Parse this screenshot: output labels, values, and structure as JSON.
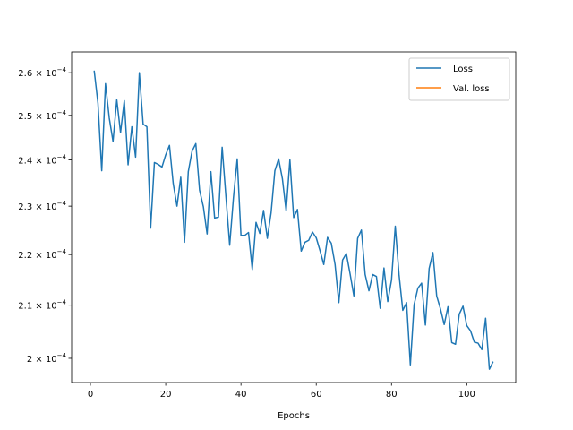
{
  "chart_data": {
    "type": "line",
    "title": "",
    "xlabel": "Epochs",
    "ylabel": "",
    "y_scale": "log",
    "xlim": [
      -5,
      113
    ],
    "ylim": [
      0.0001956,
      0.000265
    ],
    "x_ticks": [
      0,
      20,
      40,
      60,
      80,
      100
    ],
    "y_ticks": [
      {
        "value": 0.0002,
        "mantissa": "2",
        "exponent": "−4"
      },
      {
        "value": 0.00021,
        "mantissa": "2.1",
        "exponent": "−4"
      },
      {
        "value": 0.00022,
        "mantissa": "2.2",
        "exponent": "−4"
      },
      {
        "value": 0.00023,
        "mantissa": "2.3",
        "exponent": "−4"
      },
      {
        "value": 0.00024,
        "mantissa": "2.4",
        "exponent": "−4"
      },
      {
        "value": 0.00025,
        "mantissa": "2.5",
        "exponent": "−4"
      },
      {
        "value": 0.00026,
        "mantissa": "2.6",
        "exponent": "−4"
      }
    ],
    "tick_multiplier": "× 10",
    "grid": false,
    "legend_position": "top-right",
    "series": [
      {
        "name": "Loss",
        "color": "#1f77b4",
        "x": [
          1,
          2,
          3,
          4,
          5,
          6,
          7,
          8,
          9,
          10,
          11,
          12,
          13,
          14,
          15,
          16,
          17,
          18,
          19,
          20,
          21,
          22,
          23,
          24,
          25,
          26,
          27,
          28,
          29,
          30,
          31,
          32,
          33,
          34,
          35,
          36,
          37,
          38,
          39,
          40,
          41,
          42,
          43,
          44,
          45,
          46,
          47,
          48,
          49,
          50,
          51,
          52,
          53,
          54,
          55,
          56,
          57,
          58,
          59,
          60,
          61,
          62,
          63,
          64,
          65,
          66,
          67,
          68,
          69,
          70,
          71,
          72,
          73,
          74,
          75,
          76,
          77,
          78,
          79,
          80,
          81,
          82,
          83,
          84,
          85,
          86,
          87,
          88,
          89,
          90,
          91,
          92,
          93,
          94,
          95,
          96,
          97,
          98,
          99,
          100,
          101,
          102,
          103,
          104,
          105,
          106,
          107
        ],
        "y": [
          0.0002605,
          0.0002528,
          0.0002376,
          0.0002574,
          0.0002494,
          0.0002441,
          0.0002536,
          0.0002461,
          0.0002534,
          0.0002389,
          0.0002474,
          0.0002406,
          0.00026,
          0.000248,
          0.0002474,
          0.0002254,
          0.0002394,
          0.000239,
          0.0002384,
          0.0002411,
          0.0002432,
          0.0002348,
          0.00023,
          0.0002362,
          0.0002225,
          0.0002374,
          0.0002419,
          0.0002436,
          0.0002334,
          0.0002299,
          0.0002242,
          0.0002374,
          0.0002275,
          0.0002277,
          0.0002428,
          0.000232,
          0.0002219,
          0.0002318,
          0.0002402,
          0.0002239,
          0.0002239,
          0.0002245,
          0.000217,
          0.0002266,
          0.0002243,
          0.0002291,
          0.0002233,
          0.0002286,
          0.0002376,
          0.0002402,
          0.0002359,
          0.000229,
          0.00024,
          0.0002276,
          0.0002293,
          0.0002207,
          0.0002225,
          0.0002229,
          0.0002246,
          0.0002234,
          0.0002208,
          0.000218,
          0.0002235,
          0.0002223,
          0.000218,
          0.0002105,
          0.0002189,
          0.0002202,
          0.0002161,
          0.0002118,
          0.0002233,
          0.000225,
          0.000216,
          0.0002128,
          0.000216,
          0.0002156,
          0.0002094,
          0.0002173,
          0.0002107,
          0.0002149,
          0.0002258,
          0.000216,
          0.000209,
          0.0002105,
          0.0001988,
          0.0002101,
          0.0002133,
          0.0002143,
          0.0002062,
          0.0002172,
          0.0002204,
          0.0002118,
          0.0002093,
          0.0002063,
          0.0002097,
          0.0002029,
          0.0002026,
          0.0002083,
          0.0002098,
          0.0002061,
          0.0002051,
          0.000203,
          0.0002028,
          0.0002016,
          0.0002075,
          0.000198,
          0.0001994
        ]
      },
      {
        "name": "Val. loss",
        "color": "#ff7f0e",
        "x": [],
        "y": []
      }
    ]
  }
}
